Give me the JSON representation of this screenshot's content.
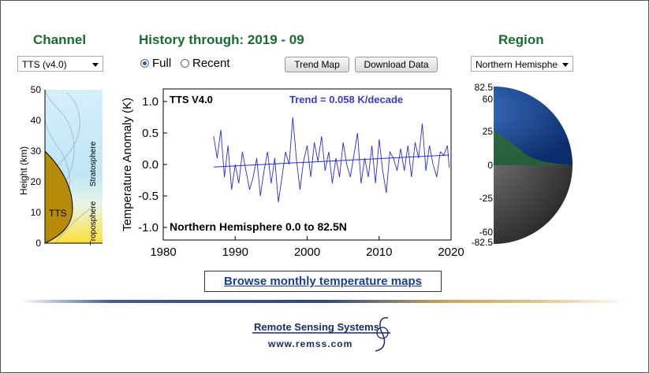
{
  "headings": {
    "channel": "Channel",
    "history": "History through: 2019 - 09",
    "region": "Region"
  },
  "channel_select": {
    "value": "TTS (v4.0)"
  },
  "history_mode": {
    "full": "Full",
    "recent": "Recent",
    "selected": "full"
  },
  "buttons": {
    "trend_map": "Trend Map",
    "download_data": "Download Data"
  },
  "region_select": {
    "value": "Northern Hemisphe"
  },
  "weighting_panel": {
    "y_axis_label": "Height (km)",
    "y_ticks": [
      "50",
      "40",
      "30",
      "20",
      "10",
      "0"
    ],
    "channel_label": "TTS",
    "layer_upper": "Stratosphere",
    "layer_lower": "Troposphere"
  },
  "globe": {
    "lat_ticks": [
      "82.5",
      "60",
      "25",
      "0",
      "-25",
      "-60",
      "-82.5"
    ]
  },
  "chart_data": {
    "type": "line",
    "title": "TTS V4.0",
    "annotation_trend": "Trend =  0.058 K/decade",
    "annotation_region": "Northern Hemisphere   0.0  to  82.5N",
    "ylabel": "Temperature Anomaly (K)",
    "xlabel": "",
    "xlim": [
      1980,
      2020
    ],
    "ylim": [
      -1.2,
      1.2
    ],
    "x_ticks": [
      "1980",
      "1990",
      "2000",
      "2010",
      "2020"
    ],
    "y_ticks": [
      "1.0",
      "0.5",
      "0.0",
      "-0.5",
      "-1.0"
    ],
    "trend_line": {
      "x": [
        1987.0,
        2019.75
      ],
      "y": [
        -0.04,
        0.15
      ]
    },
    "series": [
      {
        "x": [
          1987.0,
          1987.5,
          1988.0,
          1988.5,
          1989.0,
          1989.5,
          1990.0,
          1990.5,
          1991.0,
          1991.5,
          1992.0,
          1992.5,
          1993.0,
          1993.5,
          1994.0,
          1994.5,
          1995.0,
          1995.5,
          1996.0,
          1996.5,
          1997.0,
          1997.5,
          1998.0,
          1998.5,
          1999.0,
          1999.5,
          2000.0,
          2000.5,
          2001.0,
          2001.5,
          2002.0,
          2002.5,
          2003.0,
          2003.5,
          2004.0,
          2004.5,
          2005.0,
          2005.5,
          2006.0,
          2006.5,
          2007.0,
          2007.5,
          2008.0,
          2008.5,
          2009.0,
          2009.5,
          2010.0,
          2010.5,
          2011.0,
          2011.5,
          2012.0,
          2012.5,
          2013.0,
          2013.5,
          2014.0,
          2014.5,
          2015.0,
          2015.5,
          2016.0,
          2016.5,
          2017.0,
          2017.5,
          2018.0,
          2018.5,
          2019.0,
          2019.5,
          2019.75
        ],
        "values": [
          0.45,
          0.1,
          0.55,
          -0.2,
          0.3,
          -0.4,
          0.0,
          -0.3,
          0.2,
          -0.1,
          -0.4,
          -0.2,
          0.1,
          -0.5,
          -0.1,
          0.2,
          -0.3,
          0.1,
          -0.6,
          -0.2,
          0.2,
          0.0,
          0.75,
          0.1,
          -0.4,
          0.05,
          0.3,
          -0.2,
          0.35,
          0.05,
          0.45,
          -0.1,
          0.2,
          -0.3,
          0.1,
          -0.2,
          0.35,
          0.0,
          -0.2,
          0.15,
          0.5,
          -0.3,
          0.1,
          -0.2,
          0.3,
          -0.3,
          0.4,
          -0.1,
          -0.45,
          0.2,
          0.1,
          -0.1,
          0.25,
          -0.1,
          0.3,
          -0.2,
          0.35,
          0.1,
          0.65,
          -0.1,
          0.3,
          0.0,
          -0.2,
          0.2,
          0.15,
          0.3,
          -0.05
        ]
      }
    ]
  }
}
